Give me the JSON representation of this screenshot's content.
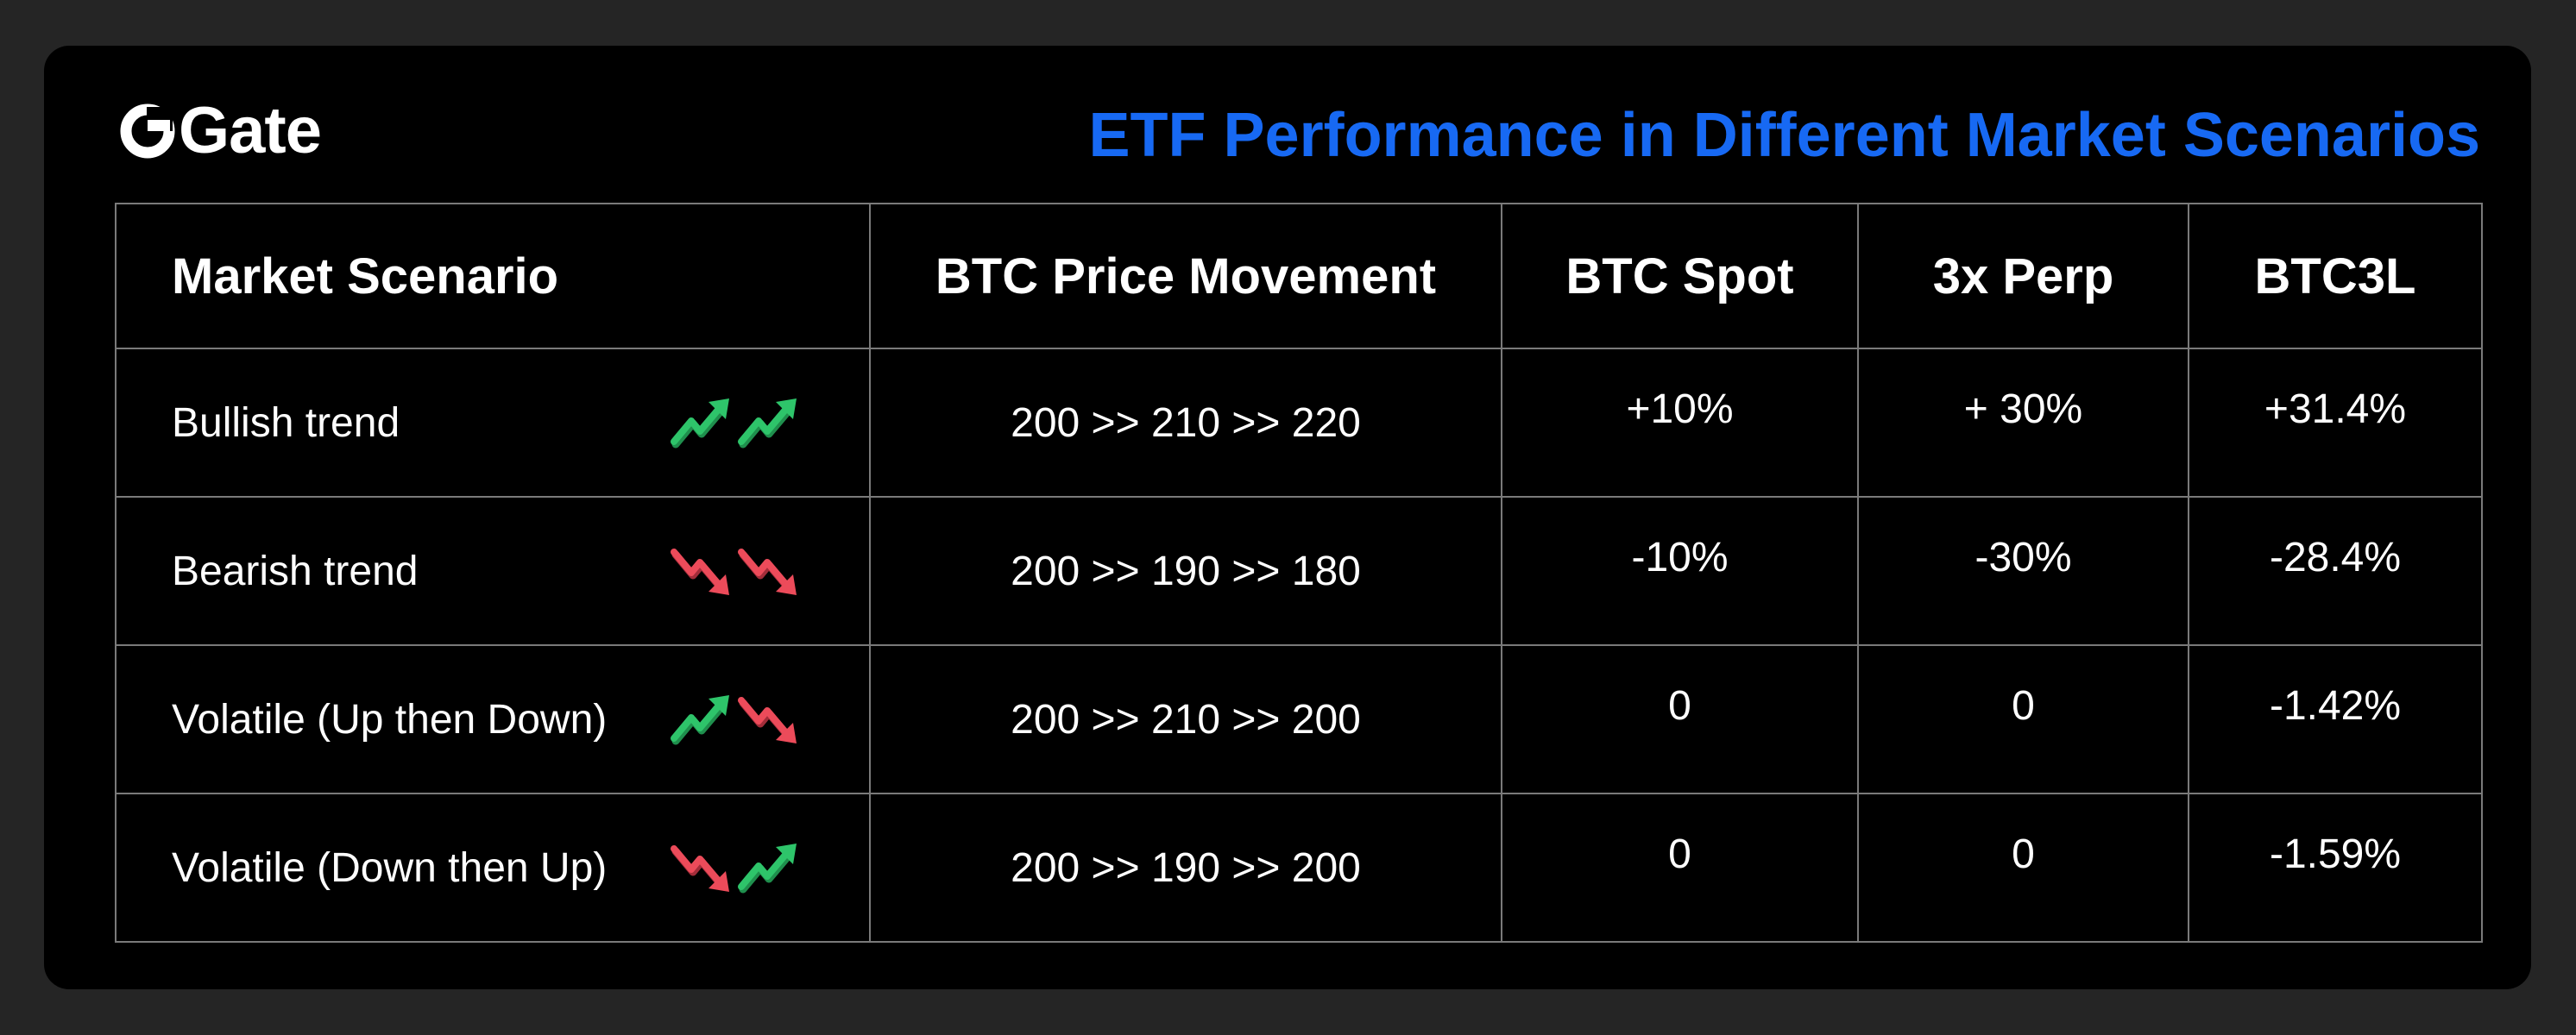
{
  "brand": {
    "name": "Gate",
    "logo_icon": "gate-logo-icon"
  },
  "title": "ETF Performance in Different Market Scenarios",
  "colors": {
    "accent": "#1769f3",
    "up_arrow": "#2ec46a",
    "down_arrow": "#ec4b5a",
    "background": "#000000",
    "grid": "#7a7a7a"
  },
  "table": {
    "headers": [
      "Market Scenario",
      "BTC Price Movement",
      "BTC Spot",
      "3x Perp",
      "BTC3L"
    ],
    "rows": [
      {
        "scenario": "Bullish trend",
        "icons": [
          "arrow-up-icon",
          "arrow-up-icon"
        ],
        "price_movement": "200 >> 210 >> 220",
        "btc_spot": "+10%",
        "perp_3x": "+ 30%",
        "btc3l": "+31.4%"
      },
      {
        "scenario": "Bearish trend",
        "icons": [
          "arrow-down-icon",
          "arrow-down-icon"
        ],
        "price_movement": "200 >> 190 >> 180",
        "btc_spot": "-10%",
        "perp_3x": "-30%",
        "btc3l": "-28.4%"
      },
      {
        "scenario": "Volatile (Up then Down)",
        "icons": [
          "arrow-up-icon",
          "arrow-down-icon"
        ],
        "price_movement": "200 >> 210 >> 200",
        "btc_spot": "0",
        "perp_3x": "0",
        "btc3l": "-1.42%"
      },
      {
        "scenario": "Volatile (Down then Up)",
        "icons": [
          "arrow-down-icon",
          "arrow-up-icon"
        ],
        "price_movement": "200 >> 190 >> 200",
        "btc_spot": "0",
        "perp_3x": "0",
        "btc3l": "-1.59%"
      }
    ]
  }
}
